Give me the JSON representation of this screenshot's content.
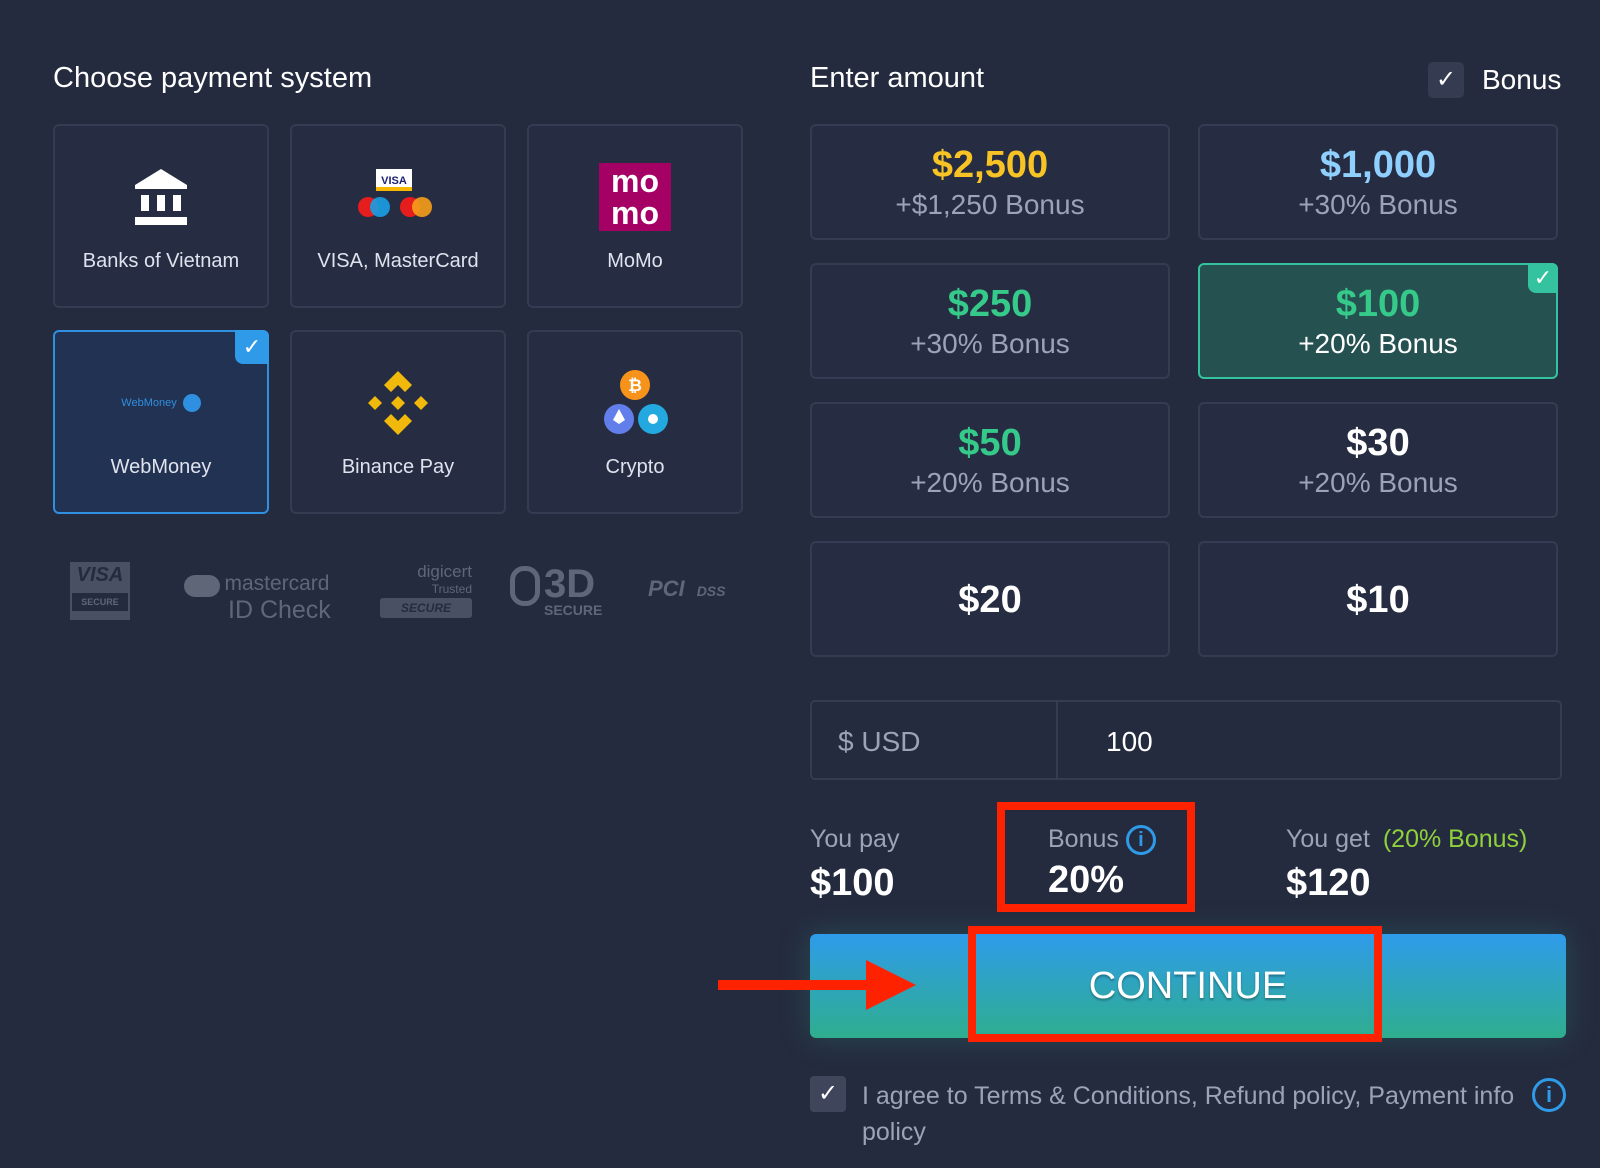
{
  "left": {
    "title": "Choose payment system",
    "methods": [
      {
        "label": "Banks of Vietnam",
        "icon": "bank-icon",
        "selected": false
      },
      {
        "label": "VISA, MasterCard",
        "icon": "visa-mastercard-icon",
        "selected": false,
        "logo_text": "VISA"
      },
      {
        "label": "MoMo",
        "icon": "momo-icon",
        "selected": false,
        "logo_text": "mo mo"
      },
      {
        "label": "WebMoney",
        "icon": "webmoney-icon",
        "selected": true,
        "logo_text": "WebMoney"
      },
      {
        "label": "Binance Pay",
        "icon": "binance-icon",
        "selected": false
      },
      {
        "label": "Crypto",
        "icon": "crypto-icon",
        "selected": false
      }
    ],
    "trust": {
      "visa": "VISA",
      "visa_sub": "SECURE",
      "mc": "mastercard",
      "mc_sub": "ID Check",
      "digicert": "digicert",
      "digicert_sub": "Trusted",
      "digicert_badge": "SECURE",
      "threed": "3D",
      "threed_sub": "SECURE",
      "pci": "PCI",
      "pci_sub": "DSS"
    }
  },
  "right": {
    "title": "Enter amount",
    "bonus_label": "Bonus",
    "bonus_checked": true,
    "amounts": [
      {
        "amount": "$2,500",
        "bonus": "+$1,250 Bonus",
        "color": "#f7c325"
      },
      {
        "amount": "$1,000",
        "bonus": "+30% Bonus",
        "color": "#8fd0ff"
      },
      {
        "amount": "$250",
        "bonus": "+30% Bonus",
        "color": "#35c98a"
      },
      {
        "amount": "$100",
        "bonus": "+20% Bonus",
        "color": "#35c98a",
        "selected": true
      },
      {
        "amount": "$50",
        "bonus": "+20% Bonus",
        "color": "#35c98a"
      },
      {
        "amount": "$30",
        "bonus": "+20% Bonus",
        "color": "#ffffff"
      },
      {
        "amount": "$20",
        "bonus": "",
        "color": "#ffffff"
      },
      {
        "amount": "$10",
        "bonus": "",
        "color": "#ffffff"
      }
    ],
    "currency": "$ USD",
    "amount_value": "100",
    "summary": {
      "pay_label": "You pay",
      "pay_value": "$100",
      "bonus_label": "Bonus",
      "bonus_value": "20%",
      "get_label": "You get",
      "get_note": "(20% Bonus)",
      "get_value": "$120"
    },
    "continue": "CONTINUE",
    "agree": "I agree to Terms & Conditions, Refund policy, Payment info policy",
    "agree_checked": true
  },
  "colors": {
    "accent_blue": "#2f9be8",
    "accent_green": "#35c29f",
    "annotation_red": "#ff2200",
    "bonus_green": "#8fd13a"
  }
}
